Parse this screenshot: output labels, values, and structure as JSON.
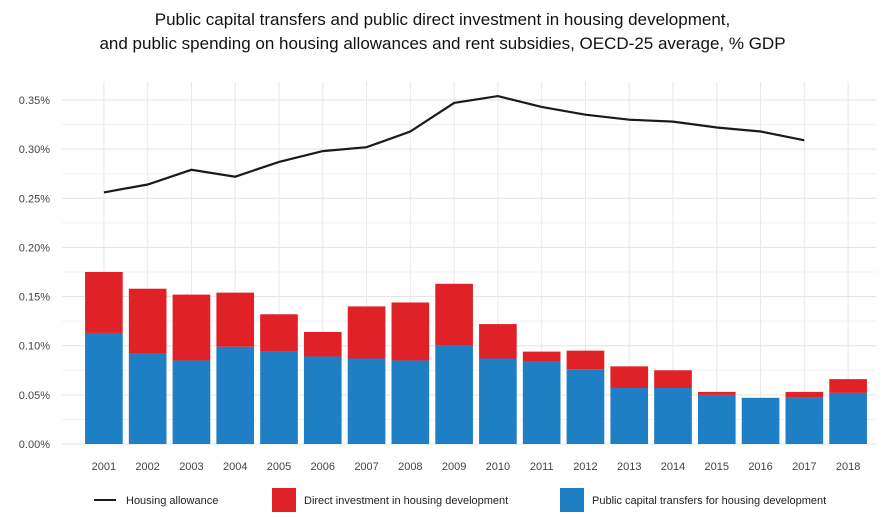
{
  "chart_data": {
    "type": "bar",
    "stacked": true,
    "title": "Public capital transfers and public direct investment in housing development,",
    "subtitle": "and public spending on housing allowances and rent subsidies, OECD-25 average, % GDP",
    "xlabel": "",
    "ylabel": "",
    "categories": [
      "2001",
      "2002",
      "2003",
      "2004",
      "2005",
      "2006",
      "2007",
      "2008",
      "2009",
      "2010",
      "2011",
      "2012",
      "2013",
      "2014",
      "2015",
      "2016",
      "2017",
      "2018"
    ],
    "ylim": [
      0,
      0.35
    ],
    "yticks": [
      0,
      0.05,
      0.1,
      0.15,
      0.2,
      0.25,
      0.3,
      0.35
    ],
    "ytick_labels": [
      "0.00%",
      "0.05%",
      "0.10%",
      "0.15%",
      "0.20%",
      "0.25%",
      "0.30%",
      "0.35%"
    ],
    "grid": true,
    "legend_position": "bottom",
    "series": [
      {
        "name": "Public capital transfers for housing development",
        "kind": "bar",
        "color": "#1f7fc4",
        "values": [
          0.113,
          0.092,
          0.085,
          0.099,
          0.094,
          0.089,
          0.087,
          0.085,
          0.1,
          0.087,
          0.084,
          0.076,
          0.057,
          0.057,
          0.05,
          0.047,
          0.047,
          0.052
        ]
      },
      {
        "name": "Direct investment in housing development",
        "kind": "bar",
        "color": "#e02128",
        "values": [
          0.062,
          0.066,
          0.067,
          0.055,
          0.038,
          0.025,
          0.053,
          0.059,
          0.063,
          0.035,
          0.01,
          0.019,
          0.022,
          0.018,
          0.003,
          0.0,
          0.006,
          0.014
        ]
      },
      {
        "name": "Housing allowance",
        "kind": "line",
        "color": "#1a1a1a",
        "values": [
          0.256,
          0.264,
          0.279,
          0.272,
          0.287,
          0.298,
          0.302,
          0.318,
          0.347,
          0.354,
          0.343,
          0.335,
          0.33,
          0.328,
          0.322,
          0.318,
          0.309,
          null
        ]
      }
    ]
  },
  "legend": [
    {
      "label": "Housing allowance",
      "kind": "line",
      "color": "#1a1a1a"
    },
    {
      "label": "Direct investment in housing development",
      "kind": "box",
      "color": "#e02128"
    },
    {
      "label": "Public capital transfers for housing development",
      "kind": "box",
      "color": "#1f7fc4"
    }
  ]
}
